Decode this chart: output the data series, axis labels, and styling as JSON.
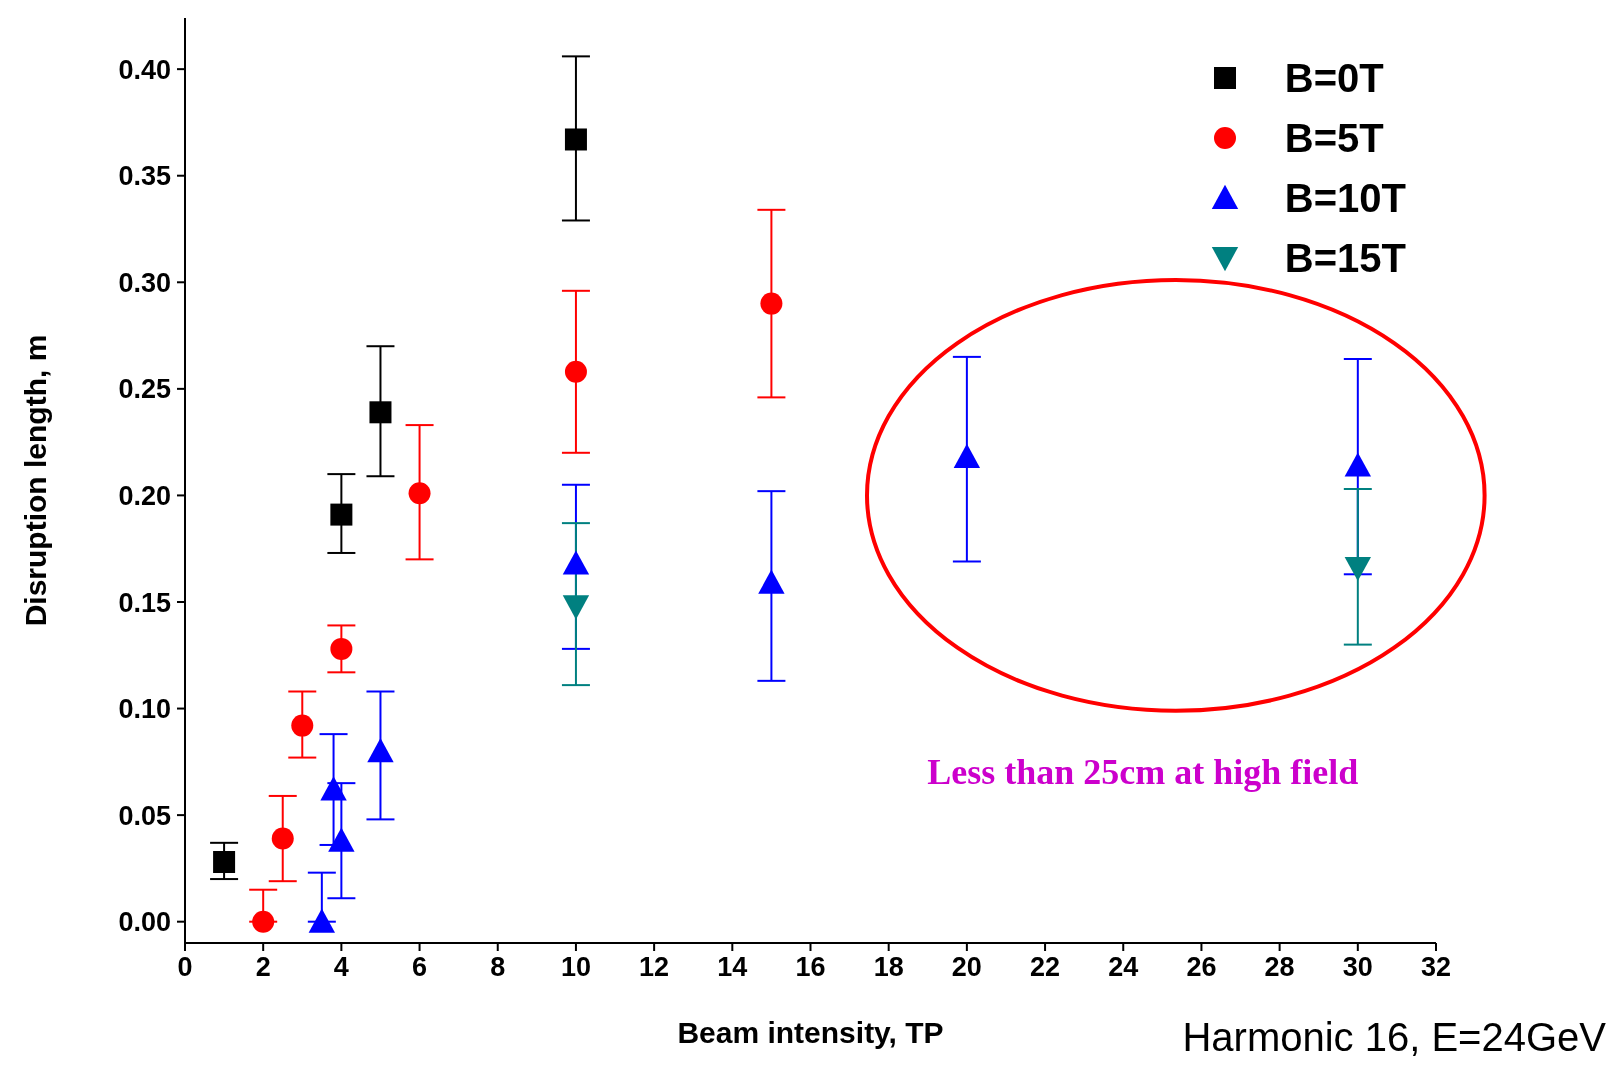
{
  "chart_data": {
    "type": "scatter",
    "xlabel": "Beam intensity, TP",
    "ylabel": "Disruption length, m",
    "xlim": [
      0,
      32
    ],
    "xticks": [
      0,
      2,
      4,
      6,
      8,
      10,
      12,
      14,
      16,
      18,
      20,
      22,
      24,
      26,
      28,
      30,
      32
    ],
    "ylim": [
      -0.01,
      0.424
    ],
    "yticks": [
      {
        "value": 0,
        "label": "0.00"
      },
      {
        "value": 0.05,
        "label": "0.05"
      },
      {
        "value": 0.1,
        "label": "0.10"
      },
      {
        "value": 0.15,
        "label": "0.15"
      },
      {
        "value": 0.2,
        "label": "0.20"
      },
      {
        "value": 0.25,
        "label": "0.25"
      },
      {
        "value": 0.3,
        "label": "0.30"
      },
      {
        "value": 0.35,
        "label": "0.35"
      },
      {
        "value": 0.4,
        "label": "0.40"
      }
    ],
    "grid": false,
    "legend": "top right",
    "series": [
      {
        "name": "B=0T",
        "color": "#000000",
        "marker": "square",
        "x": [
          1,
          4,
          5,
          10
        ],
        "values": [
          0.028,
          0.191,
          0.239,
          0.367
        ],
        "errors": [
          [
            0.02,
            0.037
          ],
          [
            0.173,
            0.21
          ],
          [
            0.209,
            0.27
          ],
          [
            0.329,
            0.406
          ]
        ]
      },
      {
        "name": "B=5T",
        "color": "#ff0000",
        "marker": "circle",
        "x": [
          2,
          2.5,
          3,
          4,
          6,
          10,
          15
        ],
        "values": [
          0.0,
          0.039,
          0.092,
          0.128,
          0.201,
          0.258,
          0.29
        ],
        "errors": [
          [
            0.0,
            0.015
          ],
          [
            0.019,
            0.059
          ],
          [
            0.077,
            0.108
          ],
          [
            0.117,
            0.139
          ],
          [
            0.17,
            0.233
          ],
          [
            0.22,
            0.296
          ],
          [
            0.246,
            0.334
          ]
        ]
      },
      {
        "name": "B=10T",
        "color": "#0000ff",
        "marker": "triangle",
        "x": [
          3.5,
          3.8,
          4,
          5,
          10,
          15,
          20,
          30
        ],
        "values": [
          0.0,
          0.062,
          0.038,
          0.08,
          0.168,
          0.159,
          0.218,
          0.214
        ],
        "errors": [
          [
            0.0,
            0.023
          ],
          [
            0.036,
            0.088
          ],
          [
            0.011,
            0.065
          ],
          [
            0.048,
            0.108
          ],
          [
            0.128,
            0.205
          ],
          [
            0.113,
            0.202
          ],
          [
            0.169,
            0.265
          ],
          [
            0.163,
            0.264
          ]
        ]
      },
      {
        "name": "B=15T",
        "color": "#008080",
        "marker": "triangle-down",
        "x": [
          10,
          30
        ],
        "values": [
          0.148,
          0.166
        ],
        "errors": [
          [
            0.111,
            0.187
          ],
          [
            0.13,
            0.203
          ]
        ]
      }
    ],
    "annotations": [
      "Less than 25cm at high field",
      "Harmonic 16, E=24GeV"
    ]
  }
}
